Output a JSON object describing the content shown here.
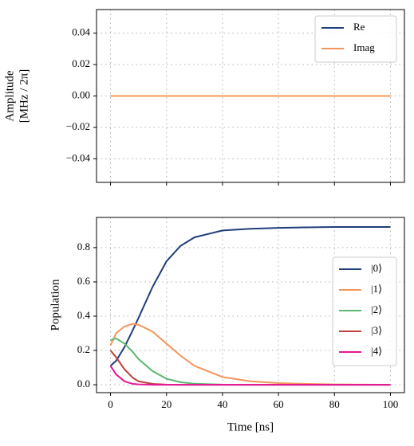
{
  "chart_data": [
    {
      "type": "line",
      "ylabel": [
        "Amplitude",
        "[MHz / 2π]"
      ],
      "x": [
        0,
        100
      ],
      "series": [
        {
          "name": "Re",
          "color": "#1f3d7a",
          "values": [
            0,
            0
          ]
        },
        {
          "name": "Imag",
          "color": "#f4955a",
          "values": [
            0,
            0
          ]
        }
      ],
      "xlim": [
        -5,
        105
      ],
      "xticks": [
        0,
        20,
        40,
        60,
        80,
        100
      ],
      "ylim": [
        -0.055,
        0.055
      ],
      "yticks": [
        {
          "value": -0.04,
          "label": "−0.04"
        },
        {
          "value": -0.02,
          "label": "−0.02"
        },
        {
          "value": 0,
          "label": "0.00"
        },
        {
          "value": 0.02,
          "label": "0.02"
        },
        {
          "value": 0.04,
          "label": "0.04"
        }
      ],
      "grid": true,
      "legend": "upper right"
    },
    {
      "type": "line",
      "xlabel": "Time [ns]",
      "ylabel": [
        "Population"
      ],
      "x": [
        0,
        2,
        5,
        8,
        10,
        15,
        20,
        25,
        30,
        40,
        50,
        60,
        70,
        80,
        90,
        100
      ],
      "series": [
        {
          "name": "|0⟩",
          "color": "#1f3d7a",
          "values": [
            0.11,
            0.14,
            0.22,
            0.32,
            0.39,
            0.57,
            0.72,
            0.81,
            0.86,
            0.9,
            0.91,
            0.915,
            0.918,
            0.92,
            0.92,
            0.92
          ]
        },
        {
          "name": "|1⟩",
          "color": "#f4955a",
          "values": [
            0.23,
            0.3,
            0.34,
            0.355,
            0.35,
            0.31,
            0.24,
            0.17,
            0.11,
            0.045,
            0.02,
            0.01,
            0.005,
            0.002,
            0.001,
            0
          ]
        },
        {
          "name": "|2⟩",
          "color": "#5cb870",
          "values": [
            0.26,
            0.27,
            0.24,
            0.19,
            0.15,
            0.08,
            0.035,
            0.015,
            0.006,
            0.001,
            0,
            0,
            0,
            0,
            0,
            0
          ]
        },
        {
          "name": "|3⟩",
          "color": "#c0403a",
          "values": [
            0.2,
            0.16,
            0.09,
            0.04,
            0.02,
            0.005,
            0.001,
            0,
            0,
            0,
            0,
            0,
            0,
            0,
            0,
            0
          ]
        },
        {
          "name": "|4⟩",
          "color": "#e8159a",
          "values": [
            0.11,
            0.06,
            0.02,
            0.005,
            0.002,
            0,
            0,
            0,
            0,
            0,
            0,
            0,
            0,
            0,
            0,
            0
          ]
        }
      ],
      "xlim": [
        -5,
        105
      ],
      "xticks": [
        0,
        20,
        40,
        60,
        80,
        100
      ],
      "ylim": [
        -0.046,
        0.976
      ],
      "yticks": [
        {
          "value": 0,
          "label": "0.0"
        },
        {
          "value": 0.2,
          "label": "0.2"
        },
        {
          "value": 0.4,
          "label": "0.4"
        },
        {
          "value": 0.6,
          "label": "0.6"
        },
        {
          "value": 0.8,
          "label": "0.8"
        }
      ],
      "grid": true,
      "legend": "center right"
    }
  ]
}
